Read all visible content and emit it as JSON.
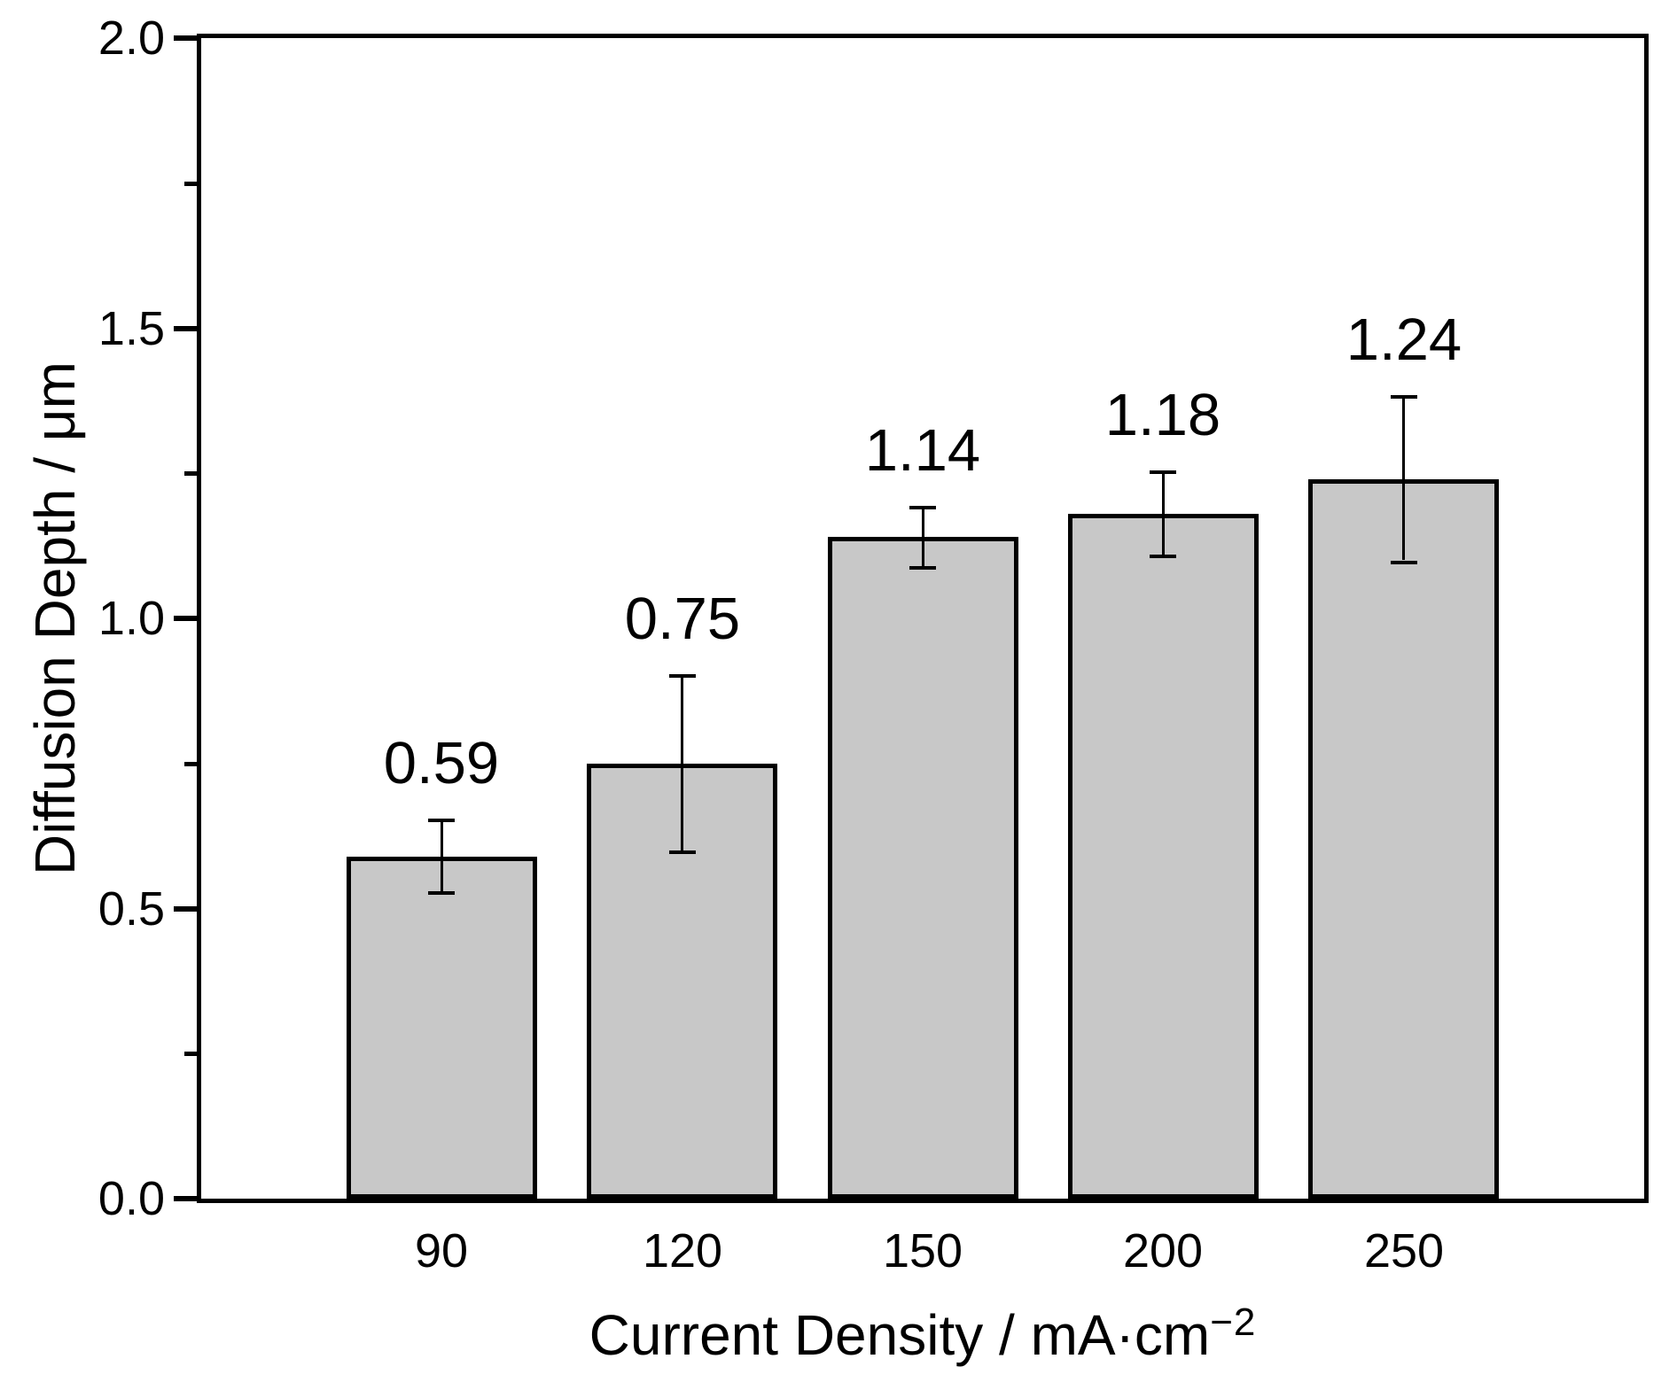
{
  "figure": {
    "background_color": "#ffffff",
    "frame_color": "#000000",
    "text_color": "#000000"
  },
  "chart_data": {
    "type": "bar",
    "title": "",
    "xlabel_prefix": "Current Density / mA·cm",
    "xlabel_superscript": "−2",
    "xlabel_full": "Current Density / mA·cm⁻²",
    "ylabel": "Diffusion Depth / μm",
    "categories": [
      "90",
      "120",
      "150",
      "200",
      "250"
    ],
    "values": [
      0.59,
      0.75,
      1.14,
      1.18,
      1.24
    ],
    "value_labels": [
      "0.59",
      "0.75",
      "1.14",
      "1.18",
      "1.24"
    ],
    "error_bars": [
      0.06,
      0.15,
      0.05,
      0.07,
      0.14
    ],
    "ylim": [
      0.0,
      2.0
    ],
    "y_major_step": 0.5,
    "y_minor_step": 0.25,
    "y_tick_labels": [
      "0.0",
      "0.5",
      "1.0",
      "1.5",
      "2.0"
    ],
    "grid": false,
    "legend": null,
    "bar_fill": "#c8c8c8",
    "bar_edge": "#000000",
    "x_ticks_visible": false,
    "y_ticks_direction": "out"
  }
}
